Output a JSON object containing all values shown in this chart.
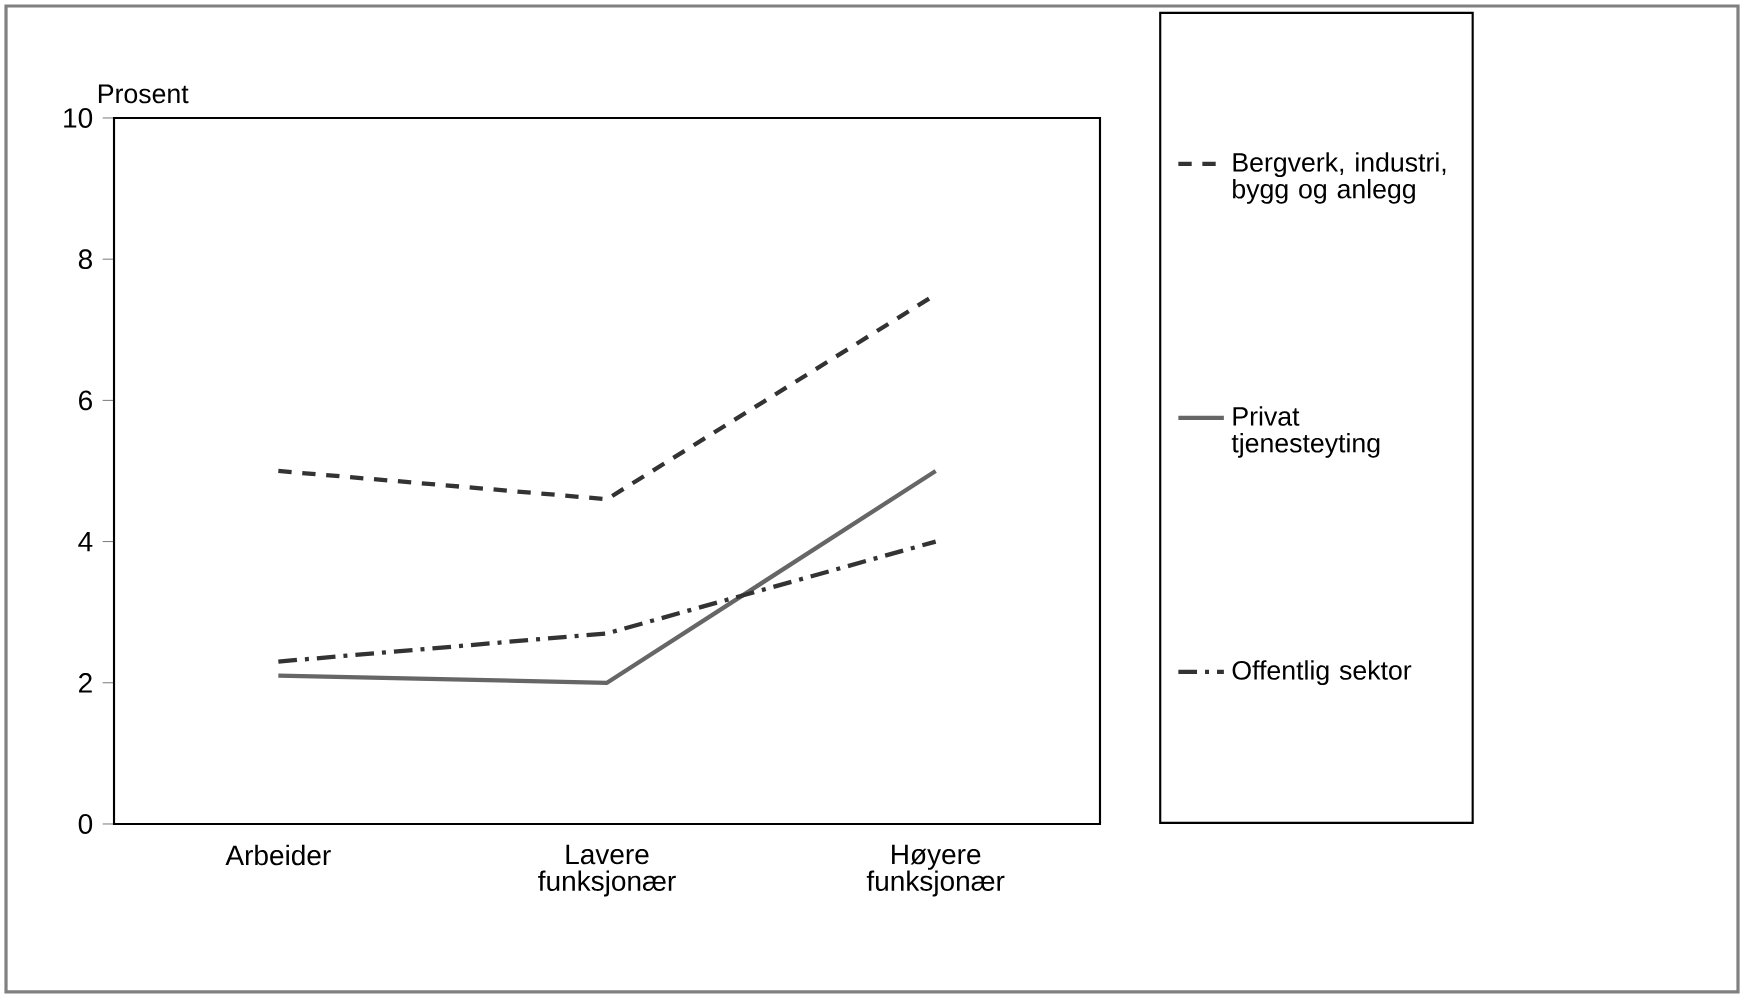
{
  "chart_data": {
    "type": "line",
    "ylabel": "Prosent",
    "categories": [
      "Arbeider",
      "Lavere funksjonær",
      "Høyere funksjonær"
    ],
    "series": [
      {
        "name": "Bergverk, industri, bygg og anlegg",
        "color": "#333333",
        "line_style": "dashed",
        "values": [
          5.0,
          4.6,
          7.5
        ]
      },
      {
        "name": "Privat tjenesteyting",
        "color": "#666666",
        "line_style": "solid",
        "values": [
          2.1,
          2.0,
          5.0
        ]
      },
      {
        "name": "Offentlig sektor",
        "color": "#333333",
        "line_style": "dashdot",
        "values": [
          2.3,
          2.7,
          4.0
        ]
      }
    ],
    "ylim": [
      0,
      10
    ],
    "yticks": [
      0,
      2,
      4,
      6,
      8,
      10
    ],
    "grid": false,
    "legend": "right",
    "marker": "none"
  }
}
